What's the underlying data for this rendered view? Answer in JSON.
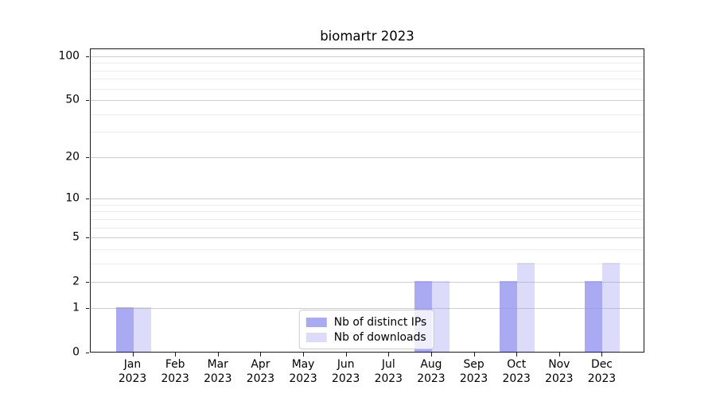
{
  "title": "biomartr 2023",
  "chart_data": {
    "type": "bar",
    "title": "biomartr 2023",
    "categories": [
      "Jan",
      "Feb",
      "Mar",
      "Apr",
      "May",
      "Jun",
      "Jul",
      "Aug",
      "Sep",
      "Oct",
      "Nov",
      "Dec"
    ],
    "category_year": "2023",
    "series": [
      {
        "name": "Nb of distinct IPs",
        "color": "#9595ef",
        "alpha": 0.8,
        "values": [
          1,
          0,
          0,
          0,
          0,
          0,
          0,
          2,
          0,
          2,
          0,
          2
        ]
      },
      {
        "name": "Nb of downloads",
        "color": "#9595ef",
        "alpha": 0.33,
        "values": [
          1,
          0,
          0,
          0,
          0,
          0,
          0,
          2,
          0,
          3,
          0,
          3
        ]
      }
    ],
    "xlabel": "",
    "ylabel": "",
    "yscale": "log1p",
    "ylim": [
      0,
      113
    ],
    "y_major_ticks": [
      0,
      1,
      2,
      5,
      10,
      20,
      50,
      100
    ],
    "y_minor_gridlines": [
      3,
      4,
      6,
      7,
      8,
      9,
      30,
      40,
      60,
      70,
      80,
      90
    ],
    "grid": true,
    "gridline_major_color": "#cdcdcd",
    "gridline_minor_color": "#ececec",
    "legend_position": "lower center"
  }
}
